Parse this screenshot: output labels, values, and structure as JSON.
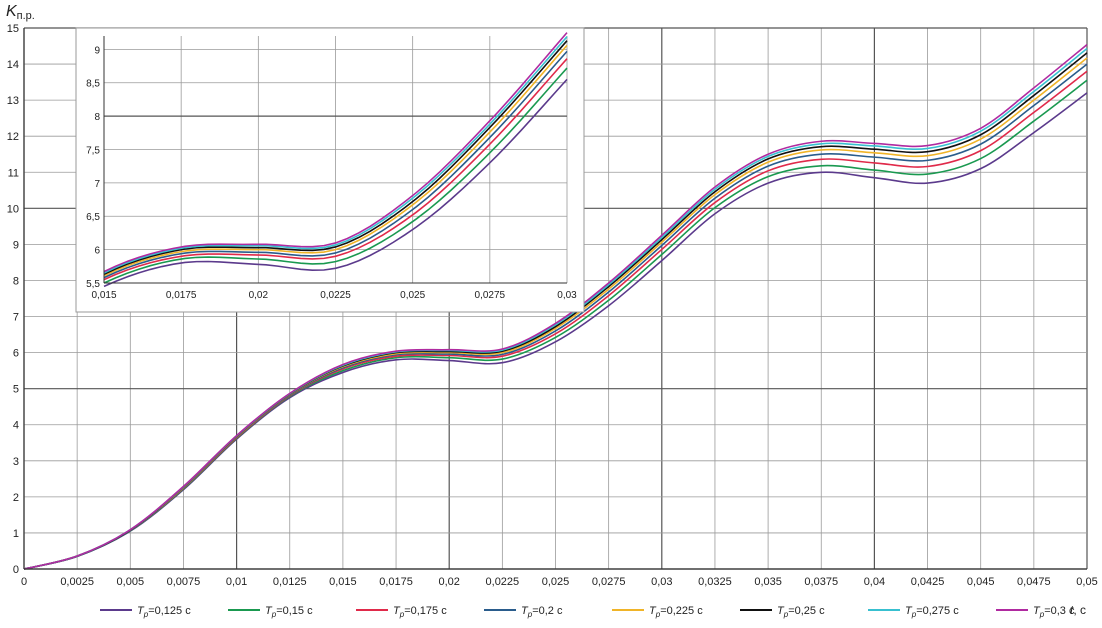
{
  "chart_data": {
    "type": "line",
    "title": "",
    "ylabel": {
      "main": "K",
      "sub": "п.р."
    },
    "xlabel": {
      "main": "t",
      "rest": ", с"
    },
    "xlim": [
      0,
      0.05
    ],
    "ylim": [
      0,
      15
    ],
    "grid": true,
    "legend_position": "bottom",
    "x_ticks": [
      "0",
      "0,0025",
      "0,005",
      "0,0075",
      "0,01",
      "0,0125",
      "0,015",
      "0,0175",
      "0,02",
      "0,0225",
      "0,025",
      "0,0275",
      "0,03",
      "0,0325",
      "0,035",
      "0,0375",
      "0,04",
      "0,0425",
      "0,045",
      "0,0475",
      "0,05"
    ],
    "y_ticks": [
      "0",
      "1",
      "2",
      "3",
      "4",
      "5",
      "6",
      "7",
      "8",
      "9",
      "10",
      "11",
      "12",
      "13",
      "14",
      "15"
    ],
    "x": [
      0,
      0.0025,
      0.005,
      0.0075,
      0.01,
      0.0125,
      0.015,
      0.0175,
      0.02,
      0.0225,
      0.025,
      0.0275,
      0.03,
      0.0325,
      0.035,
      0.0375,
      0.04,
      0.0425,
      0.045,
      0.0475,
      0.05
    ],
    "series": [
      {
        "name_prefix": "T",
        "name_sub": "р",
        "name_value": "=0,125 с",
        "color": "#5b3a8c",
        "values": [
          0,
          0.35,
          1.05,
          2.2,
          3.6,
          4.75,
          5.45,
          5.8,
          5.78,
          5.72,
          6.3,
          7.3,
          8.55,
          9.85,
          10.7,
          11.0,
          10.85,
          10.7,
          11.1,
          12.1,
          13.2
        ]
      },
      {
        "name_prefix": "T",
        "name_sub": "р",
        "name_value": "=0,15 с",
        "color": "#1a9950",
        "values": [
          0,
          0.35,
          1.06,
          2.22,
          3.62,
          4.78,
          5.5,
          5.86,
          5.86,
          5.82,
          6.42,
          7.45,
          8.72,
          10.02,
          10.88,
          11.18,
          11.06,
          10.95,
          11.38,
          12.42,
          13.55
        ]
      },
      {
        "name_prefix": "T",
        "name_sub": "р",
        "name_value": "=0,175 с",
        "color": "#e02a4a",
        "values": [
          0,
          0.35,
          1.07,
          2.24,
          3.64,
          4.8,
          5.55,
          5.9,
          5.92,
          5.9,
          6.52,
          7.58,
          8.86,
          10.16,
          11.04,
          11.36,
          11.26,
          11.16,
          11.6,
          12.66,
          13.8
        ]
      },
      {
        "name_prefix": "T",
        "name_sub": "р",
        "name_value": "=0,2 с",
        "color": "#2a5c8c",
        "values": [
          0,
          0.35,
          1.07,
          2.25,
          3.66,
          4.82,
          5.58,
          5.94,
          5.96,
          5.95,
          6.6,
          7.68,
          8.97,
          10.28,
          11.17,
          11.5,
          11.42,
          11.33,
          11.78,
          12.85,
          14.0
        ]
      },
      {
        "name_prefix": "T",
        "name_sub": "р",
        "name_value": "=0,225 с",
        "color": "#f0b428",
        "values": [
          0,
          0.36,
          1.08,
          2.26,
          3.67,
          4.84,
          5.61,
          5.97,
          6.0,
          6.0,
          6.67,
          7.76,
          9.06,
          10.38,
          11.28,
          11.62,
          11.54,
          11.46,
          11.92,
          13.0,
          14.17
        ]
      },
      {
        "name_prefix": "T",
        "name_sub": "р",
        "name_value": "=0,25 с",
        "color": "#111111",
        "values": [
          0,
          0.36,
          1.08,
          2.27,
          3.68,
          4.85,
          5.63,
          6.0,
          6.03,
          6.04,
          6.72,
          7.83,
          9.13,
          10.46,
          11.37,
          11.71,
          11.64,
          11.57,
          12.04,
          13.13,
          14.31
        ]
      },
      {
        "name_prefix": "T",
        "name_sub": "р",
        "name_value": "=0,275 с",
        "color": "#38c0d0",
        "values": [
          0,
          0.36,
          1.09,
          2.28,
          3.69,
          4.86,
          5.65,
          6.02,
          6.06,
          6.07,
          6.77,
          7.88,
          9.19,
          10.53,
          11.44,
          11.79,
          11.73,
          11.66,
          12.14,
          13.24,
          14.43
        ]
      },
      {
        "name_prefix": "T",
        "name_sub": "р",
        "name_value": "=0,3 с",
        "color": "#b02aa0",
        "values": [
          0,
          0.36,
          1.09,
          2.29,
          3.7,
          4.87,
          5.67,
          6.04,
          6.08,
          6.1,
          6.81,
          7.93,
          9.25,
          10.59,
          11.5,
          11.86,
          11.8,
          11.74,
          12.22,
          13.34,
          14.54
        ]
      }
    ],
    "inset": {
      "xlim": [
        0.015,
        0.03
      ],
      "ylim": [
        5.5,
        9.2
      ],
      "x_ticks": [
        "0,015",
        "0,0175",
        "0,02",
        "0,0225",
        "0,025",
        "0,0275",
        "0,03"
      ],
      "y_ticks": [
        "5,5",
        "6",
        "6,5",
        "7",
        "7,5",
        "8",
        "8,5",
        "9"
      ]
    }
  }
}
